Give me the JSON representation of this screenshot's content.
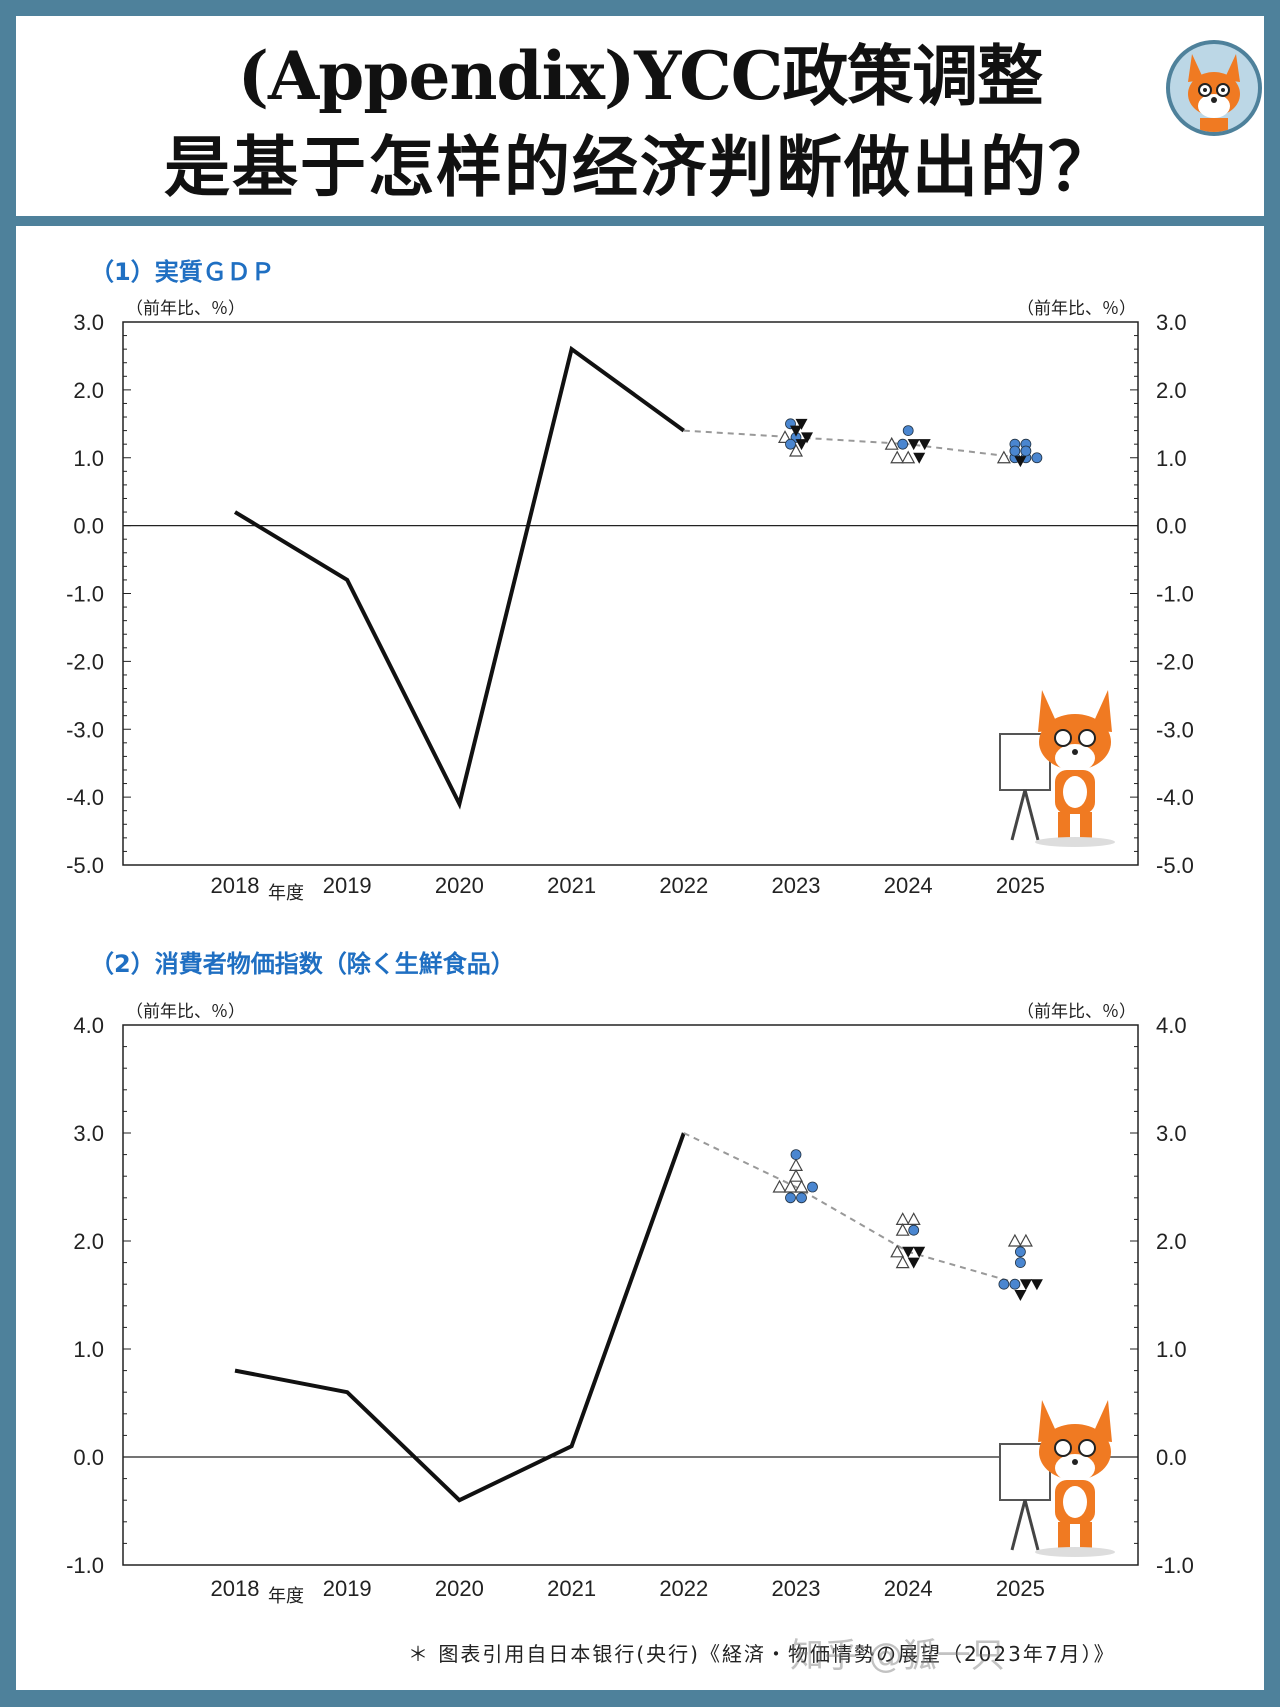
{
  "header": {
    "title_line1": "(Appendix)YCC政策调整",
    "title_line2": "是基于怎样的经济判断做出的？"
  },
  "colors": {
    "frame": "#4e819b",
    "section_title": "#1f6fc2",
    "marker_blue": "#4a86d0",
    "median_line": "#999999"
  },
  "icons": {
    "avatar": "fox-mascot-icon",
    "chart_decoration": "fox-teacher-icon"
  },
  "footer": {
    "note": "＊ 图表引用自日本银行(央行)《経済・物価情勢の展望（2023年7月）》",
    "watermark": "知乎 @狐一只"
  },
  "chart_data": [
    {
      "type": "line",
      "title": "（1）実質ＧＤＰ",
      "unit_left": "（前年比、％）",
      "unit_right": "（前年比、％）",
      "x_unit": "年度",
      "categories": [
        "2018",
        "2019",
        "2020",
        "2021",
        "2022",
        "2023",
        "2024",
        "2025"
      ],
      "ylim": [
        -5.0,
        3.0
      ],
      "yticks": [
        "3.0",
        "2.0",
        "1.0",
        "0.0",
        "-1.0",
        "-2.0",
        "-3.0",
        "-4.0",
        "-5.0"
      ],
      "actual": [
        0.2,
        -0.8,
        -4.1,
        2.6,
        1.4
      ],
      "median_forecast": {
        "style": "dashed",
        "from": [
          "2022",
          1.4
        ],
        "values": [
          1.3,
          1.2,
          1.0
        ]
      },
      "board_forecasts": [
        {
          "year": "2023",
          "circle": [
            1.5,
            1.3,
            1.2
          ],
          "up": [
            1.3,
            1.1
          ],
          "down": [
            1.5,
            1.4,
            1.3,
            1.2
          ]
        },
        {
          "year": "2024",
          "circle": [
            1.4,
            1.2
          ],
          "up": [
            1.2,
            1.0,
            1.0
          ],
          "down": [
            1.2,
            1.2,
            1.0
          ]
        },
        {
          "year": "2025",
          "circle": [
            1.2,
            1.2,
            1.1,
            1.1,
            1.0,
            1.0,
            1.0
          ],
          "up": [
            1.0
          ],
          "down": [
            0.95
          ]
        }
      ]
    },
    {
      "type": "line",
      "title": "（2）消費者物価指数（除く生鮮食品）",
      "unit_left": "（前年比、％）",
      "unit_right": "（前年比、％）",
      "x_unit": "年度",
      "categories": [
        "2018",
        "2019",
        "2020",
        "2021",
        "2022",
        "2023",
        "2024",
        "2025"
      ],
      "ylim": [
        -1.0,
        4.0
      ],
      "yticks": [
        "4.0",
        "3.0",
        "2.0",
        "1.0",
        "0.0",
        "-1.0"
      ],
      "actual": [
        0.8,
        0.6,
        -0.4,
        0.1,
        3.0
      ],
      "median_forecast": {
        "style": "dashed",
        "from": [
          "2022",
          3.0
        ],
        "values": [
          2.5,
          1.9,
          1.6
        ]
      },
      "board_forecasts": [
        {
          "year": "2023",
          "circle": [
            2.8,
            2.5,
            2.4,
            2.4
          ],
          "up": [
            2.7,
            2.6,
            2.5,
            2.5,
            2.5
          ],
          "down": []
        },
        {
          "year": "2024",
          "circle": [
            2.1
          ],
          "up": [
            2.2,
            2.2,
            2.1,
            1.9,
            1.8
          ],
          "down": [
            1.9,
            1.9,
            1.8
          ]
        },
        {
          "year": "2025",
          "circle": [
            1.9,
            1.8,
            1.6,
            1.6
          ],
          "up": [
            2.0,
            2.0
          ],
          "down": [
            1.6,
            1.6,
            1.5
          ]
        }
      ]
    }
  ]
}
